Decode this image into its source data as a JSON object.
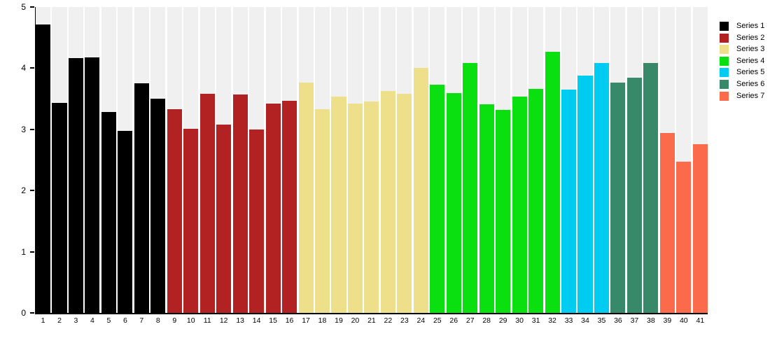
{
  "chart_data": {
    "type": "bar",
    "title": "",
    "xlabel": "",
    "ylabel": "",
    "ylim": [
      0,
      5
    ],
    "yticks": [
      0,
      1,
      2,
      3,
      4,
      5
    ],
    "grid": false,
    "legend_position": "right",
    "column_background": "#f0f0f0",
    "axis_color": "#000000",
    "categories": [
      "1",
      "2",
      "3",
      "4",
      "5",
      "6",
      "7",
      "8",
      "9",
      "10",
      "11",
      "12",
      "13",
      "14",
      "15",
      "16",
      "17",
      "18",
      "19",
      "20",
      "21",
      "22",
      "23",
      "24",
      "25",
      "26",
      "27",
      "28",
      "29",
      "30",
      "31",
      "32",
      "33",
      "34",
      "35",
      "36",
      "37",
      "38",
      "39",
      "40",
      "41"
    ],
    "values": [
      4.71,
      3.43,
      4.16,
      4.18,
      3.28,
      2.97,
      3.75,
      3.5,
      3.33,
      3.01,
      3.58,
      3.08,
      3.57,
      3.0,
      3.42,
      3.47,
      3.77,
      3.33,
      3.54,
      3.42,
      3.46,
      3.63,
      3.58,
      4.0,
      3.73,
      3.59,
      4.08,
      3.41,
      3.32,
      3.53,
      3.66,
      4.27,
      3.65,
      3.88,
      4.08,
      3.77,
      3.85,
      4.08,
      2.94,
      2.47,
      2.76
    ],
    "bar_series": [
      1,
      1,
      1,
      1,
      1,
      1,
      1,
      1,
      2,
      2,
      2,
      2,
      2,
      2,
      2,
      2,
      3,
      3,
      3,
      3,
      3,
      3,
      3,
      3,
      4,
      4,
      4,
      4,
      4,
      4,
      4,
      4,
      5,
      5,
      5,
      6,
      6,
      6,
      7,
      7,
      7
    ],
    "series": [
      {
        "name": "Series 1",
        "color": "#000000"
      },
      {
        "name": "Series 2",
        "color": "#b22222"
      },
      {
        "name": "Series 3",
        "color": "#eee08a"
      },
      {
        "name": "Series 4",
        "color": "#0ae00f"
      },
      {
        "name": "Series 5",
        "color": "#00cbf0"
      },
      {
        "name": "Series 6",
        "color": "#37896a"
      },
      {
        "name": "Series 7",
        "color": "#fb6a4a"
      }
    ]
  }
}
